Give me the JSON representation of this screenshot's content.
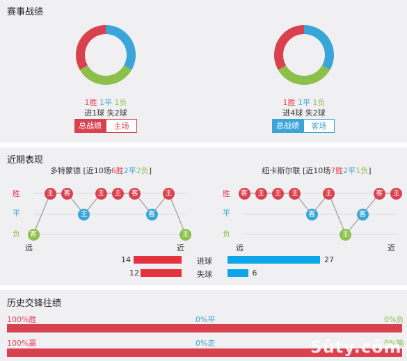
{
  "colors": {
    "win": "#d9414f",
    "draw": "#3aa5d8",
    "loss": "#8cc04b",
    "blue_bar": "#0ea5e9"
  },
  "record": {
    "title": "赛事战绩",
    "left": {
      "win": "1胜",
      "draw": "1平",
      "loss": "1负",
      "goals": "进1球 失2球",
      "btn_total": "总战绩",
      "btn_venue": "主场",
      "donut": [
        {
          "value": 1,
          "color": "#3aa5d8"
        },
        {
          "value": 1,
          "color": "#8cc04b"
        },
        {
          "value": 1,
          "color": "#d9414f"
        }
      ]
    },
    "right": {
      "win": "1胜",
      "draw": "1平",
      "loss": "1负",
      "goals": "进4球 失2球",
      "btn_total": "总战绩",
      "btn_venue": "客场",
      "donut": [
        {
          "value": 1,
          "color": "#3aa5d8"
        },
        {
          "value": 1,
          "color": "#8cc04b"
        },
        {
          "value": 1,
          "color": "#d9414f"
        }
      ]
    }
  },
  "recent": {
    "title": "近期表现",
    "left": {
      "team": "多特蒙德",
      "summary_pre": " [近10场",
      "wins": "6胜",
      "draws": "2平",
      "losses": "2负",
      "summary_post": "]",
      "matches": [
        {
          "result": "L",
          "venue": "客"
        },
        {
          "result": "W",
          "venue": "主"
        },
        {
          "result": "W",
          "venue": "客"
        },
        {
          "result": "D",
          "venue": "主"
        },
        {
          "result": "W",
          "venue": "主"
        },
        {
          "result": "W",
          "venue": "主"
        },
        {
          "result": "W",
          "venue": "客"
        },
        {
          "result": "D",
          "venue": "客"
        },
        {
          "result": "W",
          "venue": "主"
        },
        {
          "result": "L",
          "venue": "主"
        }
      ],
      "far": "远",
      "near": "近"
    },
    "right": {
      "team": "纽卡斯尔联",
      "summary_pre": " [近10场",
      "wins": "7胜",
      "draws": "2平",
      "losses": "1负",
      "summary_post": "]",
      "matches": [
        {
          "result": "W",
          "venue": "客"
        },
        {
          "result": "W",
          "venue": "主"
        },
        {
          "result": "W",
          "venue": "主"
        },
        {
          "result": "W",
          "venue": "主"
        },
        {
          "result": "D",
          "venue": "客"
        },
        {
          "result": "W",
          "venue": "主"
        },
        {
          "result": "L",
          "venue": "主"
        },
        {
          "result": "D",
          "venue": "客"
        },
        {
          "result": "W",
          "venue": "客"
        },
        {
          "result": "W",
          "venue": "主"
        }
      ],
      "far": "远",
      "near": "近"
    },
    "row_labels": {
      "win": "胜",
      "draw": "平",
      "loss": "负"
    },
    "goals": {
      "scored_label": "进球",
      "conceded_label": "失球",
      "left_scored": 14,
      "left_conceded": 12,
      "right_scored": 27,
      "right_conceded": 6
    }
  },
  "h2h": {
    "title": "历史交锋往绩",
    "row1": {
      "left": "100%胜",
      "mid": "0%平",
      "right": "0%负",
      "fill_pct": 100
    },
    "row2": {
      "left": "100%赢",
      "mid": "0%走",
      "right": "0%输",
      "fill_pct": 100
    }
  },
  "watermark": "5ūty.cōm"
}
